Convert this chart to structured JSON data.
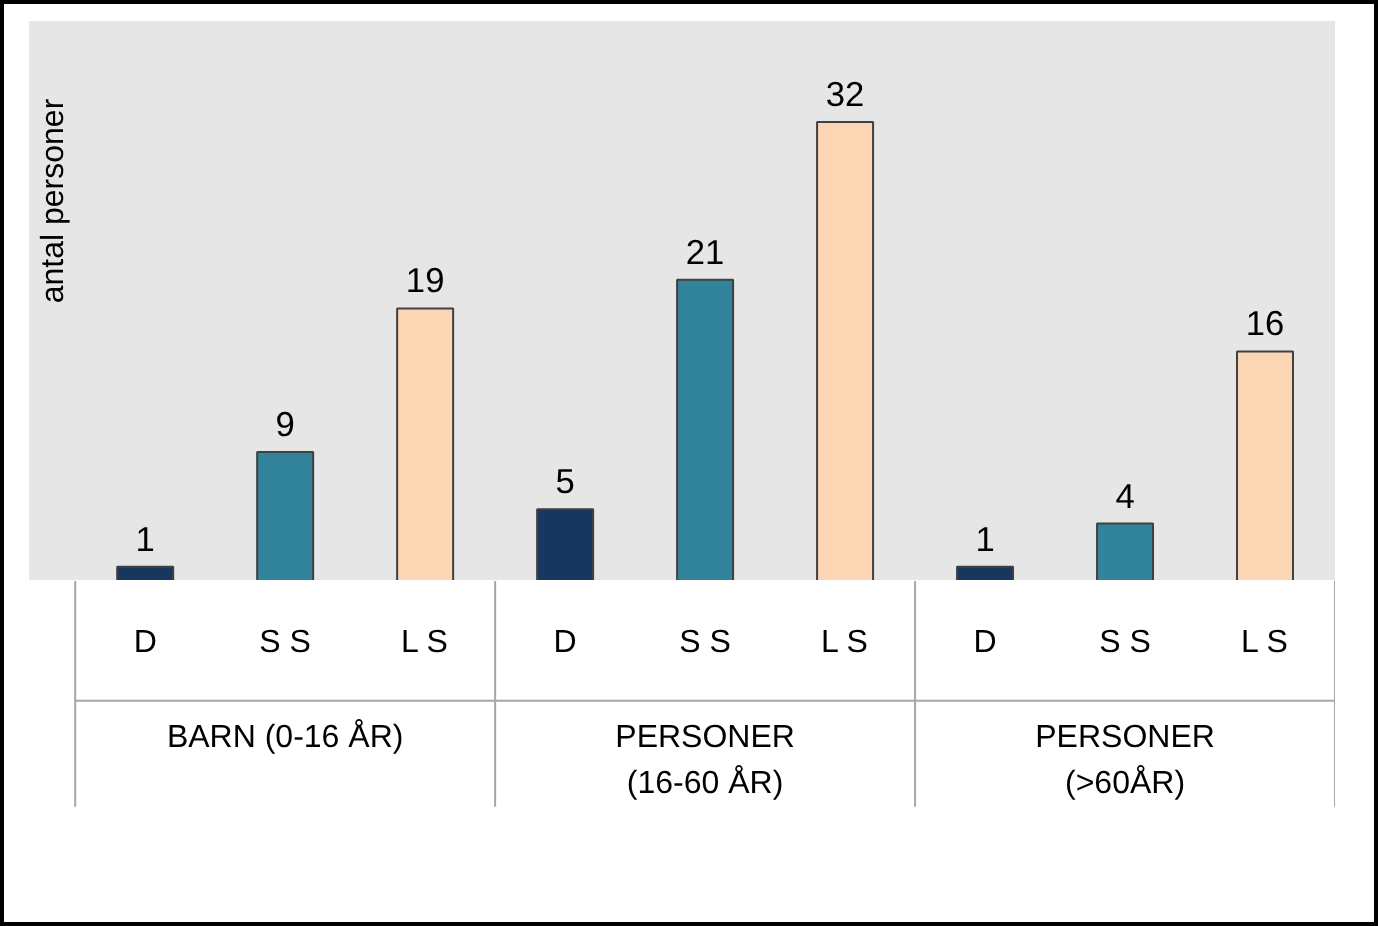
{
  "chart_data": {
    "type": "bar",
    "categories": [
      "BARN (0-16 ÅR)",
      "PERSONER\n(16-60 ÅR)",
      "PERSONER\n(>60ÅR)"
    ],
    "ylabel": "antal personer",
    "series": [
      {
        "name": "D",
        "color": "#17375e",
        "values": [
          1,
          5,
          1
        ]
      },
      {
        "name": "S S",
        "color": "#31849b",
        "values": [
          9,
          21,
          4
        ]
      },
      {
        "name": "L S",
        "color": "#fcd5b5",
        "values": [
          19,
          32,
          16
        ]
      }
    ],
    "data_labels": true
  }
}
